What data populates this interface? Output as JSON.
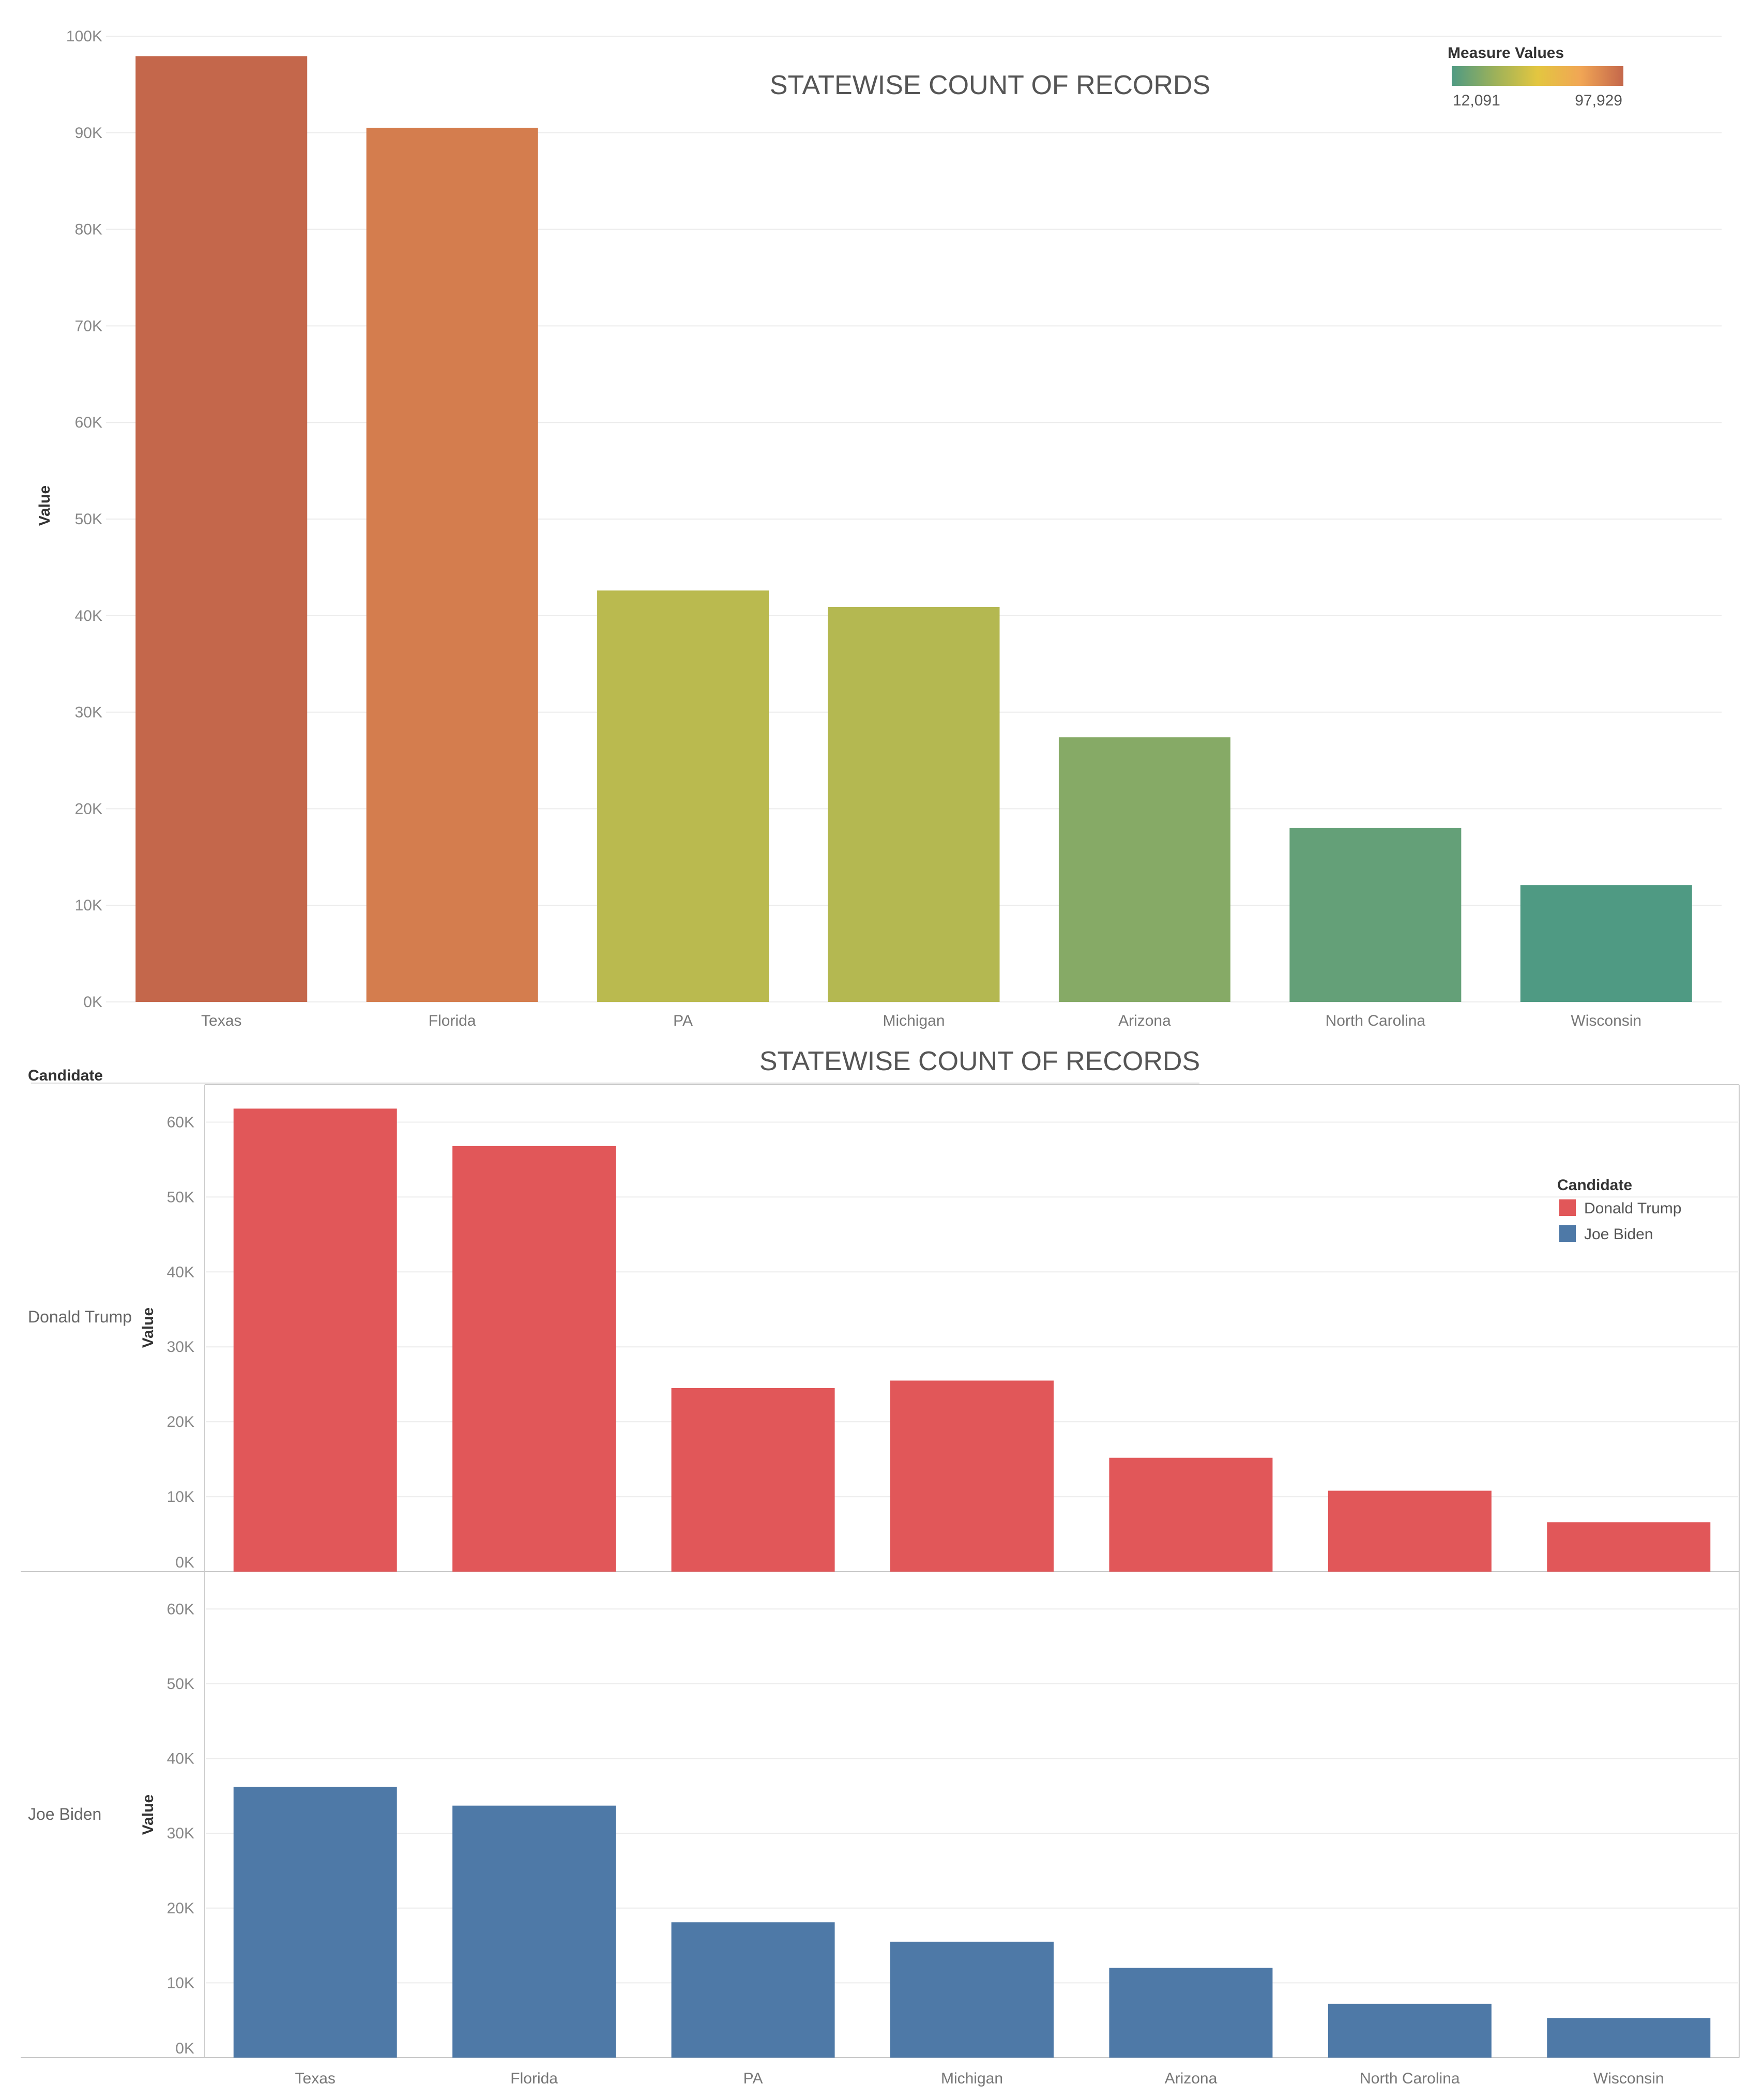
{
  "chart_data": [
    {
      "type": "bar",
      "title": "STATEWISE COUNT OF RECORDS",
      "ylabel": "Value",
      "xlabel": "",
      "categories": [
        "Texas",
        "Florida",
        "PA",
        "Michigan",
        "Arizona",
        "North Carolina",
        "Wisconsin"
      ],
      "values": [
        97929,
        90500,
        42600,
        40900,
        27400,
        18000,
        12091
      ],
      "ylim": [
        0,
        100000
      ],
      "yticks": [
        0,
        10000,
        20000,
        30000,
        40000,
        50000,
        60000,
        70000,
        80000,
        90000,
        100000
      ],
      "ytick_labels": [
        "0K",
        "10K",
        "20K",
        "30K",
        "40K",
        "50K",
        "60K",
        "70K",
        "80K",
        "90K",
        "100K"
      ],
      "grid": true,
      "color_legend": {
        "title": "Measure Values",
        "min_label": "12,091",
        "max_label": "97,929",
        "min": 12091,
        "max": 97929,
        "colors": [
          "#4f9a83",
          "#9cb15a",
          "#e3c640",
          "#f1a655",
          "#c4674b"
        ]
      }
    },
    {
      "type": "bar",
      "title": "STATEWISE COUNT OF RECORDS",
      "ylabel": "Value",
      "row_header_title": "Candidate",
      "categories": [
        "Texas",
        "Florida",
        "PA",
        "Michigan",
        "Arizona",
        "North Carolina",
        "Wisconsin"
      ],
      "ylim": [
        0,
        65000
      ],
      "yticks": [
        0,
        10000,
        20000,
        30000,
        40000,
        50000,
        60000
      ],
      "ytick_labels": [
        "0K",
        "10K",
        "20K",
        "30K",
        "40K",
        "50K",
        "60K"
      ],
      "grid": true,
      "legend": {
        "title": "Candidate",
        "placement": "top-right",
        "entries": [
          {
            "name": "Donald Trump",
            "color": "#e15759"
          },
          {
            "name": "Joe Biden",
            "color": "#4e79a7"
          }
        ]
      },
      "series": [
        {
          "name": "Donald Trump",
          "row_label": "Donald Trump",
          "color": "#e15759",
          "values": [
            61800,
            56800,
            24500,
            25500,
            15200,
            10800,
            6600
          ]
        },
        {
          "name": "Joe Biden",
          "row_label": "Joe Biden",
          "color": "#4e79a7",
          "values": [
            36200,
            33700,
            18100,
            15500,
            12000,
            7200,
            5300
          ]
        }
      ]
    }
  ]
}
